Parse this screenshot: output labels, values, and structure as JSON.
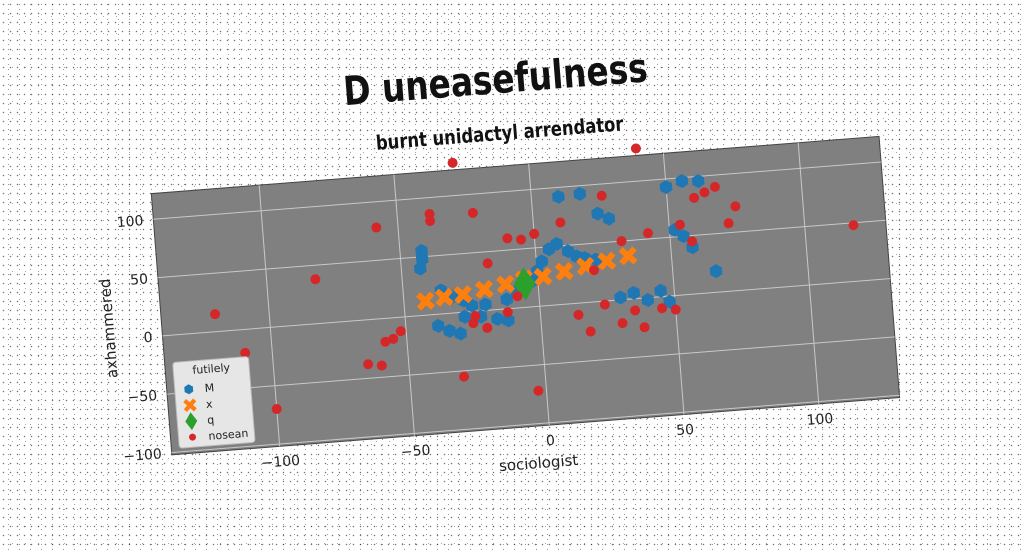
{
  "chart_data": {
    "type": "scatter",
    "title": "D uneasefulness",
    "subtitle": "burnt unidactyl arrendator",
    "xlabel": "sociologist",
    "ylabel": "axhammered",
    "xlim": [
      -140,
      130
    ],
    "ylim": [
      -102,
      122
    ],
    "xticks": [
      -100,
      -50,
      0,
      50,
      100
    ],
    "yticks": [
      -100,
      -50,
      0,
      50,
      100
    ],
    "xtick_labels": [
      "−100",
      "−50",
      "0",
      "50",
      "100"
    ],
    "ytick_labels": [
      "−100",
      "−50",
      "0",
      "50",
      "100"
    ],
    "grid": true,
    "background": "#808080",
    "legend": {
      "title": "futilely",
      "placement": "lower-left"
    },
    "series": [
      {
        "name": "M",
        "marker": "hexagon",
        "color": "#1f77b4",
        "points": [
          [
            -42,
            55
          ],
          [
            -42,
            48
          ],
          [
            -43,
            40
          ],
          [
            -36,
            20
          ],
          [
            -32,
            14
          ],
          [
            -28,
            10
          ],
          [
            -25,
            5
          ],
          [
            -22,
            -5
          ],
          [
            -38,
            -10
          ],
          [
            -34,
            -15
          ],
          [
            -30,
            -18
          ],
          [
            -16,
            -8
          ],
          [
            -12,
            8
          ],
          [
            -8,
            14
          ],
          [
            -5,
            18
          ],
          [
            -2,
            22
          ],
          [
            0,
            30
          ],
          [
            2,
            38
          ],
          [
            5,
            48
          ],
          [
            8,
            52
          ],
          [
            12,
            45
          ],
          [
            15,
            40
          ],
          [
            18,
            38
          ],
          [
            22,
            36
          ],
          [
            10,
            92
          ],
          [
            18,
            93
          ],
          [
            24,
            75
          ],
          [
            28,
            70
          ],
          [
            30,
            2
          ],
          [
            35,
            5
          ],
          [
            40,
            -2
          ],
          [
            45,
            5
          ],
          [
            48,
            -5
          ],
          [
            52,
            56
          ],
          [
            55,
            50
          ],
          [
            58,
            40
          ],
          [
            50,
            93
          ],
          [
            56,
            97
          ],
          [
            62,
            96
          ],
          [
            66,
            18
          ],
          [
            -12,
            -10
          ],
          [
            -28,
            -4
          ],
          [
            -20,
            5
          ]
        ]
      },
      {
        "name": "x",
        "marker": "x",
        "color": "#ff7f0e",
        "points": [
          [
            -42,
            12
          ],
          [
            -35,
            14
          ],
          [
            -28,
            15
          ],
          [
            -20,
            18
          ],
          [
            -12,
            21
          ],
          [
            -5,
            24
          ],
          [
            2,
            25
          ],
          [
            10,
            28
          ],
          [
            18,
            31
          ],
          [
            26,
            34
          ],
          [
            34,
            37
          ]
        ]
      },
      {
        "name": "q",
        "marker": "diamond",
        "color": "#2ca02c",
        "points": [
          [
            -5,
            20
          ]
        ]
      },
      {
        "name": "nosean",
        "marker": "circle",
        "color": "#d62728",
        "points": [
          [
            -120,
            15
          ],
          [
            -110,
            -20
          ],
          [
            -100,
            -70
          ],
          [
            -82,
            38
          ],
          [
            -65,
            -38
          ],
          [
            -60,
            -40
          ],
          [
            -58,
            -20
          ],
          [
            -55,
            -18
          ],
          [
            -52,
            -12
          ],
          [
            -58,
            78
          ],
          [
            -38,
            86
          ],
          [
            -38,
            80
          ],
          [
            -30,
            -55
          ],
          [
            -28,
            128
          ],
          [
            -25,
            -10
          ],
          [
            -24,
            -4
          ],
          [
            -22,
            84
          ],
          [
            -18,
            40
          ],
          [
            -20,
            -15
          ],
          [
            -10,
            60
          ],
          [
            -5,
            58
          ],
          [
            -3,
            -72
          ],
          [
            -12,
            -3
          ],
          [
            -8,
            10
          ],
          [
            0,
            62
          ],
          [
            10,
            70
          ],
          [
            14,
            -10
          ],
          [
            18,
            -25
          ],
          [
            21,
            27
          ],
          [
            24,
            -3
          ],
          [
            26,
            90
          ],
          [
            30,
            -20
          ],
          [
            32,
            50
          ],
          [
            35,
            -10
          ],
          [
            38,
            -25
          ],
          [
            40,
            128
          ],
          [
            42,
            55
          ],
          [
            45,
            -10
          ],
          [
            50,
            -12
          ],
          [
            54,
            60
          ],
          [
            58,
            45
          ],
          [
            60,
            82
          ],
          [
            64,
            86
          ],
          [
            68,
            90
          ],
          [
            75,
            72
          ],
          [
            72,
            58
          ],
          [
            118,
            48
          ]
        ]
      }
    ]
  }
}
